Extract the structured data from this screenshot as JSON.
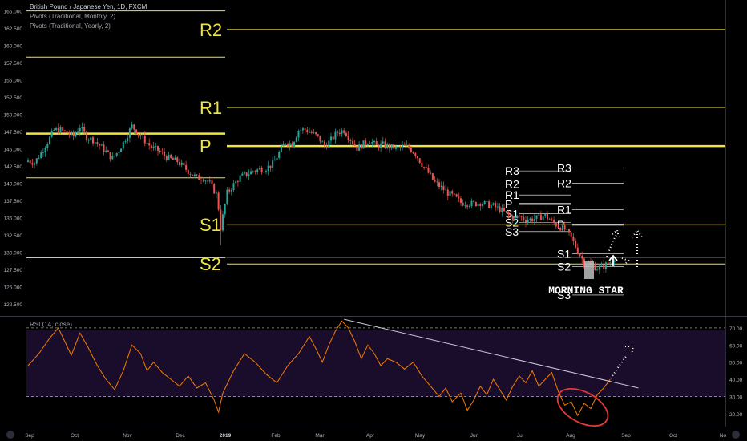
{
  "header": {
    "symbol_title": "British Pound / Japanese Yen, 1D, FXCM",
    "indicator_monthly": "Pivots (Traditional, Monthly, 2)",
    "indicator_yearly": "Pivots (Traditional, Yearly, 2)",
    "rsi_title": "RSI (14, close)"
  },
  "colors": {
    "background": "#000000",
    "candle_up": "#26a69a",
    "candle_down": "#ef5350",
    "pivot_yellow": "#f0e442",
    "rsi_line": "#f57c00",
    "rsi_band": "#1a0d2b",
    "annotation_red": "#e53935",
    "axis_text": "#b2b5be"
  },
  "chart_data": [
    {
      "type": "candlestick",
      "price_axis_ticks": [
        "165.000",
        "162.500",
        "160.000",
        "157.500",
        "155.000",
        "152.500",
        "150.000",
        "147.500",
        "145.000",
        "142.500",
        "140.000",
        "137.500",
        "135.000",
        "132.500",
        "130.000",
        "127.500",
        "125.000",
        "122.500"
      ],
      "ylim": [
        121.0,
        166.0
      ],
      "time_axis_labels": [
        "Sep",
        "Oct",
        "Nov",
        "Dec",
        "2019",
        "Feb",
        "Mar",
        "Apr",
        "May",
        "Jun",
        "Jul",
        "Aug",
        "Sep",
        "Oct",
        "No"
      ],
      "close_path": [
        [
          0,
          143.3
        ],
        [
          3,
          143.0
        ],
        [
          6,
          144.4
        ],
        [
          9,
          146.0
        ],
        [
          12,
          147.7
        ],
        [
          15,
          147.7
        ],
        [
          18,
          147.3
        ],
        [
          21,
          146.8
        ],
        [
          24,
          148.2
        ],
        [
          27,
          146.7
        ],
        [
          30,
          146.3
        ],
        [
          33,
          145.5
        ],
        [
          36,
          144.6
        ],
        [
          39,
          143.6
        ],
        [
          42,
          144.8
        ],
        [
          45,
          146.5
        ],
        [
          48,
          148.3
        ],
        [
          51,
          147.2
        ],
        [
          54,
          146.2
        ],
        [
          57,
          145.2
        ],
        [
          60,
          144.8
        ],
        [
          63,
          144.0
        ],
        [
          66,
          143.5
        ],
        [
          69,
          143.2
        ],
        [
          72,
          142.3
        ],
        [
          75,
          141.5
        ],
        [
          78,
          140.8
        ],
        [
          81,
          140.8
        ],
        [
          84,
          140.0
        ],
        [
          87,
          138.4
        ],
        [
          88,
          136.4
        ],
        [
          89,
          133.5
        ],
        [
          92,
          138.6
        ],
        [
          95,
          139.8
        ],
        [
          98,
          140.9
        ],
        [
          101,
          141.3
        ],
        [
          104,
          141.8
        ],
        [
          107,
          142.0
        ],
        [
          110,
          142.2
        ],
        [
          113,
          142.8
        ],
        [
          116,
          144.4
        ],
        [
          119,
          146.0
        ],
        [
          122,
          145.7
        ],
        [
          125,
          147.7
        ],
        [
          128,
          147.8
        ],
        [
          131,
          147.3
        ],
        [
          134,
          146.7
        ],
        [
          137,
          145.4
        ],
        [
          140,
          146.3
        ],
        [
          143,
          147.4
        ],
        [
          146,
          147.7
        ],
        [
          149,
          146.4
        ],
        [
          152,
          145.1
        ],
        [
          155,
          145.7
        ],
        [
          158,
          146.2
        ],
        [
          161,
          145.4
        ],
        [
          164,
          145.6
        ],
        [
          167,
          145.3
        ],
        [
          170,
          145.1
        ],
        [
          173,
          145.3
        ],
        [
          176,
          145.2
        ],
        [
          179,
          144.3
        ],
        [
          182,
          142.8
        ],
        [
          185,
          141.5
        ],
        [
          188,
          140.1
        ],
        [
          191,
          139.4
        ],
        [
          194,
          138.6
        ],
        [
          197,
          138.0
        ],
        [
          200,
          137.2
        ],
        [
          203,
          137.1
        ],
        [
          206,
          137.0
        ],
        [
          209,
          137.2
        ],
        [
          212,
          136.9
        ],
        [
          215,
          136.7
        ],
        [
          218,
          136.2
        ],
        [
          221,
          135.6
        ],
        [
          224,
          135.0
        ],
        [
          227,
          135.2
        ],
        [
          230,
          134.7
        ],
        [
          233,
          134.8
        ],
        [
          236,
          135.0
        ],
        [
          239,
          135.3
        ],
        [
          242,
          134.4
        ],
        [
          245,
          133.8
        ],
        [
          248,
          133.3
        ],
        [
          251,
          132.1
        ],
        [
          254,
          130.2
        ],
        [
          257,
          128.5
        ],
        [
          260,
          128.2
        ],
        [
          263,
          127.7
        ],
        [
          266,
          128.0
        ],
        [
          269,
          128.6
        ],
        [
          271,
          129.3
        ]
      ],
      "pivots_yearly": [
        {
          "label": "R2",
          "value": 162.3
        },
        {
          "label": "R1",
          "value": 151.0
        },
        {
          "label": "P",
          "value": 145.4
        },
        {
          "label": "S1",
          "value": 134.0
        },
        {
          "label": "S2",
          "value": 128.3
        }
      ],
      "pivot_labels_monthly": [
        "R3",
        "R2",
        "R1",
        "P",
        "S1",
        "S2",
        "S3"
      ],
      "pivot_labels_monthly_next": [
        "R3",
        "R2",
        "R1",
        "P",
        "S1",
        "S2",
        "S3"
      ],
      "annotation": "MORNING STAR"
    },
    {
      "type": "line",
      "title": "RSI (14, close)",
      "yticks": [
        "70.00",
        "60.00",
        "50.00",
        "40.00",
        "30.00",
        "20.00"
      ],
      "ylim": [
        13,
        76
      ],
      "bands": [
        30,
        70
      ],
      "values": [
        [
          0,
          48
        ],
        [
          5,
          55
        ],
        [
          10,
          64
        ],
        [
          14,
          70
        ],
        [
          17,
          62
        ],
        [
          20,
          54
        ],
        [
          24,
          67
        ],
        [
          28,
          58
        ],
        [
          32,
          48
        ],
        [
          36,
          40
        ],
        [
          40,
          34
        ],
        [
          44,
          45
        ],
        [
          48,
          60
        ],
        [
          52,
          55
        ],
        [
          55,
          45
        ],
        [
          58,
          50
        ],
        [
          62,
          44
        ],
        [
          66,
          40
        ],
        [
          70,
          36
        ],
        [
          74,
          42
        ],
        [
          78,
          35
        ],
        [
          82,
          38
        ],
        [
          86,
          28
        ],
        [
          88,
          21
        ],
        [
          90,
          32
        ],
        [
          95,
          45
        ],
        [
          100,
          55
        ],
        [
          105,
          50
        ],
        [
          110,
          43
        ],
        [
          115,
          38
        ],
        [
          120,
          48
        ],
        [
          125,
          55
        ],
        [
          130,
          65
        ],
        [
          133,
          58
        ],
        [
          136,
          50
        ],
        [
          139,
          60
        ],
        [
          142,
          68
        ],
        [
          145,
          74
        ],
        [
          148,
          70
        ],
        [
          151,
          62
        ],
        [
          154,
          52
        ],
        [
          157,
          60
        ],
        [
          160,
          55
        ],
        [
          163,
          48
        ],
        [
          166,
          52
        ],
        [
          170,
          50
        ],
        [
          174,
          46
        ],
        [
          178,
          50
        ],
        [
          182,
          42
        ],
        [
          186,
          36
        ],
        [
          190,
          30
        ],
        [
          193,
          35
        ],
        [
          196,
          27
        ],
        [
          200,
          32
        ],
        [
          203,
          22
        ],
        [
          206,
          28
        ],
        [
          209,
          36
        ],
        [
          212,
          31
        ],
        [
          215,
          40
        ],
        [
          218,
          34
        ],
        [
          221,
          28
        ],
        [
          224,
          36
        ],
        [
          227,
          42
        ],
        [
          230,
          38
        ],
        [
          233,
          45
        ],
        [
          236,
          36
        ],
        [
          239,
          40
        ],
        [
          242,
          44
        ],
        [
          245,
          33
        ],
        [
          248,
          25
        ],
        [
          251,
          27
        ],
        [
          254,
          19
        ],
        [
          257,
          26
        ],
        [
          260,
          23
        ],
        [
          263,
          31
        ],
        [
          266,
          35
        ],
        [
          269,
          40
        ]
      ],
      "trendline": {
        "from": [
          146,
          75
        ],
        "to": [
          282,
          35
        ]
      }
    }
  ]
}
